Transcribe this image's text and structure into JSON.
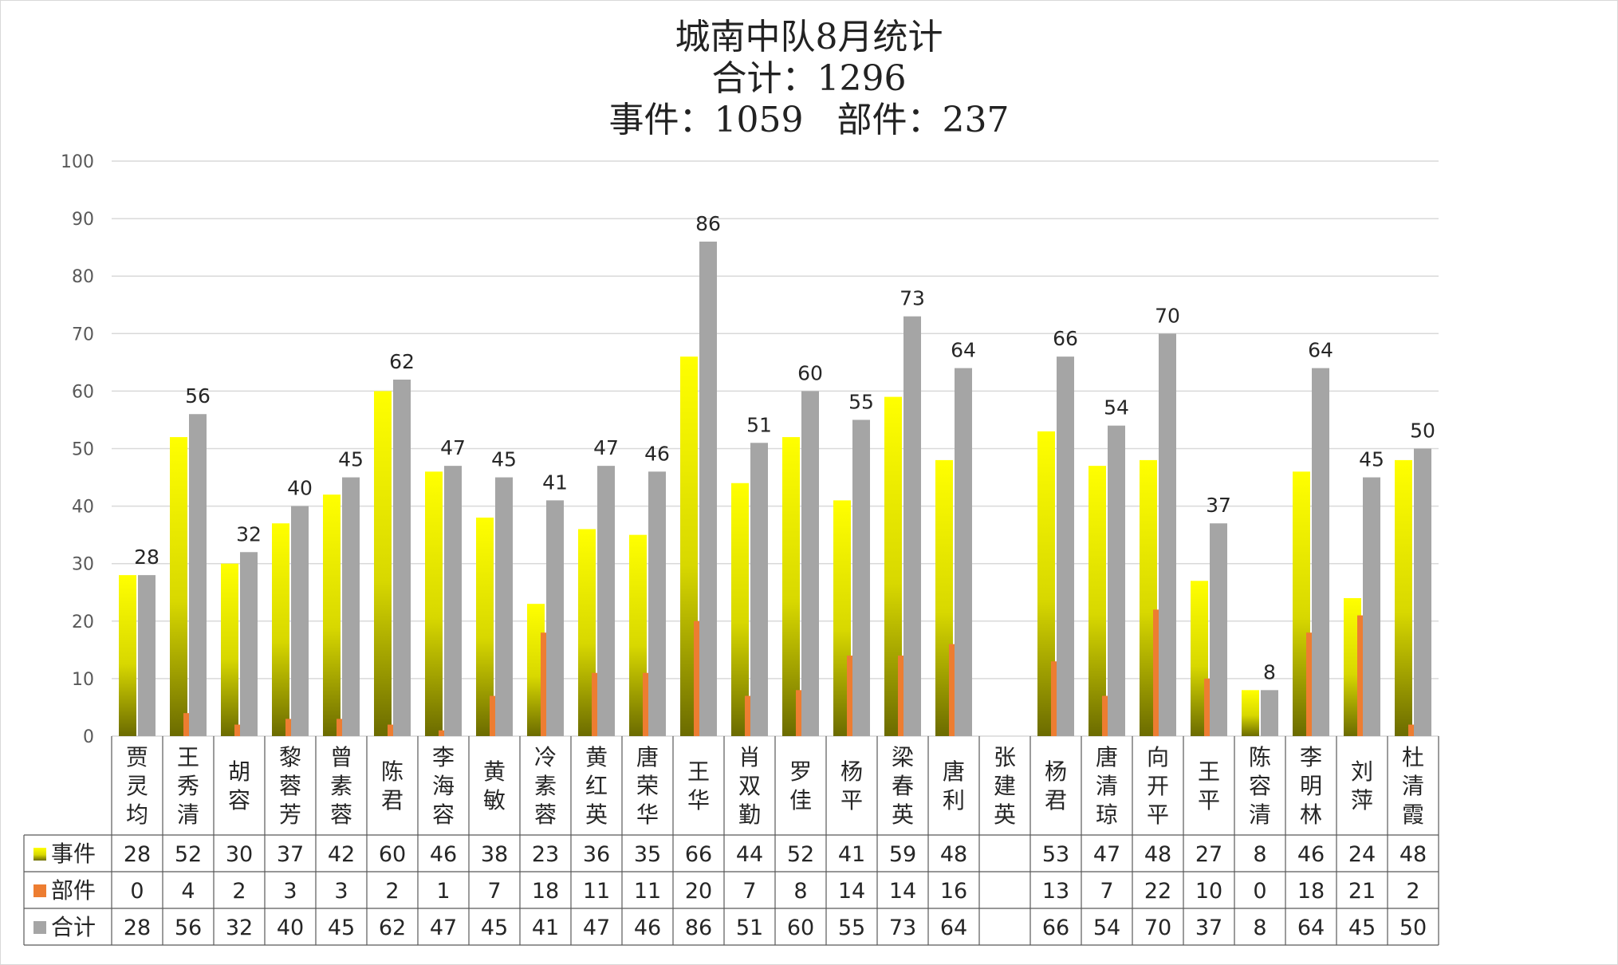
{
  "title": {
    "line1": "城南中队8月统计",
    "line2": "合计：1296",
    "line3": "事件：1059   部件：237"
  },
  "colors": {
    "event_top": "#ffff00",
    "event_bottom": "#6b6b00",
    "part": "#ed7d31",
    "total": "#a5a5a5",
    "grid": "#d9d9d9",
    "table_border": "#595959"
  },
  "chart_data": {
    "type": "bar",
    "ylim": [
      0,
      100
    ],
    "yticks": [
      0,
      10,
      20,
      30,
      40,
      50,
      60,
      70,
      80,
      90,
      100
    ],
    "categories": [
      "贾灵均",
      "王秀清",
      "胡容",
      "黎蓉芳",
      "曾素蓉",
      "陈君",
      "李海容",
      "黄敏",
      "冷素蓉",
      "黄红英",
      "唐荣华",
      "王华",
      "肖双勤",
      "罗佳",
      "杨平",
      "梁春英",
      "唐利",
      "张建英",
      "杨君",
      "唐清琼",
      "向开平",
      "王平",
      "陈容清",
      "李明林",
      "刘萍",
      "杜清霞"
    ],
    "series": [
      {
        "name": "事件",
        "values": [
          28,
          52,
          30,
          37,
          42,
          60,
          46,
          38,
          23,
          36,
          35,
          66,
          44,
          52,
          41,
          59,
          48,
          null,
          53,
          47,
          48,
          27,
          8,
          46,
          24,
          48
        ]
      },
      {
        "name": "部件",
        "values": [
          0,
          4,
          2,
          3,
          3,
          2,
          1,
          7,
          18,
          11,
          11,
          20,
          7,
          8,
          14,
          14,
          16,
          null,
          13,
          7,
          22,
          10,
          0,
          18,
          21,
          2
        ]
      },
      {
        "name": "合计",
        "values": [
          28,
          56,
          32,
          40,
          45,
          62,
          47,
          45,
          41,
          47,
          46,
          86,
          51,
          60,
          55,
          73,
          64,
          null,
          66,
          54,
          70,
          37,
          8,
          64,
          45,
          50
        ]
      }
    ],
    "data_labels_series": "合计",
    "legend_position": "data-table"
  }
}
